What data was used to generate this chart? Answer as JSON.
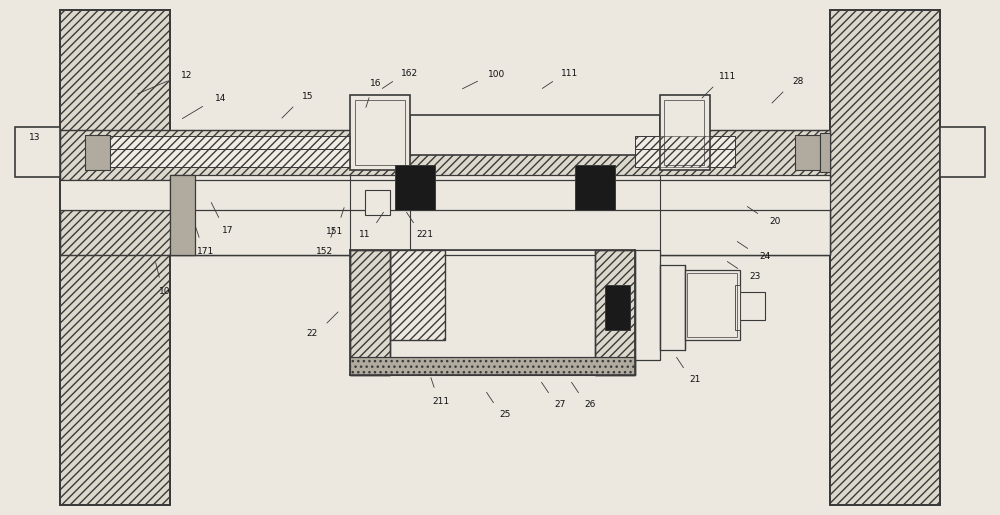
{
  "bg": "#ece8e0",
  "lc": "#3a3a3a",
  "fc_hatch": "#ddd8cc",
  "fc_light": "#f0ece4",
  "fc_dark": "#1a1a1a",
  "fc_mid": "#b0aa9f",
  "figsize": [
    10.0,
    5.15
  ],
  "dpi": 100,
  "annotations": [
    [
      "12",
      13.5,
      42.0,
      17.0,
      43.5
    ],
    [
      "13",
      3.5,
      36.5,
      3.5,
      36.5
    ],
    [
      "14",
      18.0,
      39.5,
      20.5,
      41.0
    ],
    [
      "15",
      28.0,
      39.5,
      29.5,
      41.0
    ],
    [
      "16",
      36.5,
      40.5,
      37.0,
      42.0
    ],
    [
      "162",
      38.0,
      42.5,
      39.5,
      43.5
    ],
    [
      "100",
      46.0,
      42.5,
      48.0,
      43.5
    ],
    [
      "111",
      54.0,
      42.5,
      55.5,
      43.5
    ],
    [
      "111",
      70.0,
      41.5,
      71.5,
      43.0
    ],
    [
      "28",
      77.0,
      41.0,
      78.5,
      42.5
    ],
    [
      "17",
      21.0,
      31.5,
      22.0,
      29.5
    ],
    [
      "171",
      19.5,
      29.0,
      20.0,
      27.5
    ],
    [
      "10",
      15.5,
      25.5,
      16.0,
      23.5
    ],
    [
      "151",
      34.5,
      31.0,
      34.0,
      29.5
    ],
    [
      "152",
      33.5,
      29.0,
      33.0,
      27.5
    ],
    [
      "11",
      38.5,
      30.5,
      37.5,
      29.0
    ],
    [
      "221",
      40.5,
      30.5,
      41.5,
      29.0
    ],
    [
      "22",
      34.0,
      20.5,
      32.5,
      19.0
    ],
    [
      "211",
      43.0,
      14.0,
      43.5,
      12.5
    ],
    [
      "25",
      48.5,
      12.5,
      49.5,
      11.0
    ],
    [
      "27",
      54.0,
      13.5,
      55.0,
      12.0
    ],
    [
      "26",
      57.0,
      13.5,
      58.0,
      12.0
    ],
    [
      "21",
      67.5,
      16.0,
      68.5,
      14.5
    ],
    [
      "20",
      74.5,
      31.0,
      76.0,
      30.0
    ],
    [
      "24",
      73.5,
      27.5,
      75.0,
      26.5
    ],
    [
      "23",
      72.5,
      25.5,
      74.0,
      24.5
    ]
  ]
}
